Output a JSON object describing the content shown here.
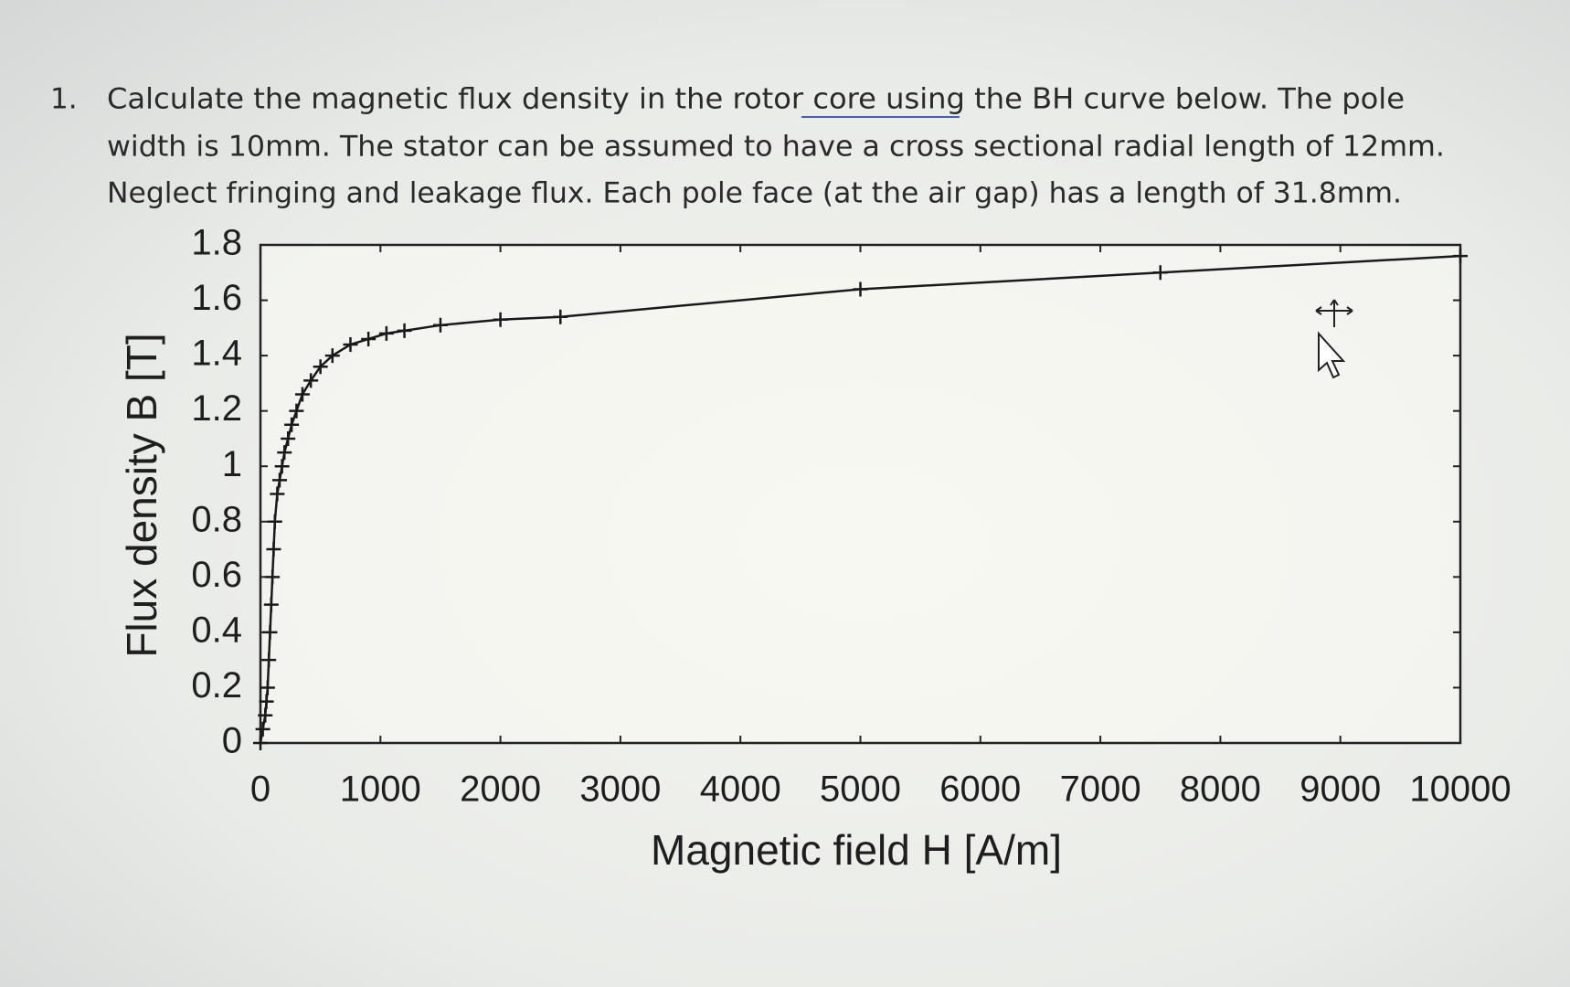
{
  "question": {
    "number": "1.",
    "lines": [
      "Calculate the magnetic flux density in the rotor core  using the BH curve below. The pole",
      "width is 10mm. The stator can be assumed to have a cross sectional radial length of 12mm.",
      "Neglect fringing and leakage flux. Each pole face (at the air gap) has a length of 31.8mm."
    ]
  },
  "chart_data": {
    "type": "line",
    "xlabel": "Magnetic field H [A/m]",
    "ylabel": "Flux density B [T]",
    "x": [
      0,
      20,
      40,
      50,
      60,
      70,
      80,
      90,
      100,
      110,
      120,
      140,
      160,
      180,
      200,
      230,
      260,
      300,
      350,
      420,
      500,
      600,
      750,
      900,
      1050,
      1200,
      1500,
      2000,
      2500,
      5000,
      7500,
      10000
    ],
    "series": [
      {
        "color": "#1a1a1a",
        "values": [
          0,
          0.05,
          0.1,
          0.15,
          0.2,
          0.3,
          0.4,
          0.5,
          0.6,
          0.7,
          0.8,
          0.9,
          0.95,
          1.0,
          1.05,
          1.1,
          1.15,
          1.2,
          1.26,
          1.31,
          1.36,
          1.4,
          1.44,
          1.46,
          1.48,
          1.49,
          1.51,
          1.53,
          1.54,
          1.64,
          1.7,
          1.76
        ]
      }
    ],
    "xlim": [
      0,
      10000
    ],
    "ylim": [
      0,
      1.8
    ],
    "xticks": [
      0,
      1000,
      2000,
      3000,
      4000,
      5000,
      6000,
      7000,
      8000,
      9000,
      10000
    ],
    "yticks": [
      0,
      0.2,
      0.4,
      0.6,
      0.8,
      1,
      1.2,
      1.4,
      1.6,
      1.8
    ],
    "markers": true
  }
}
